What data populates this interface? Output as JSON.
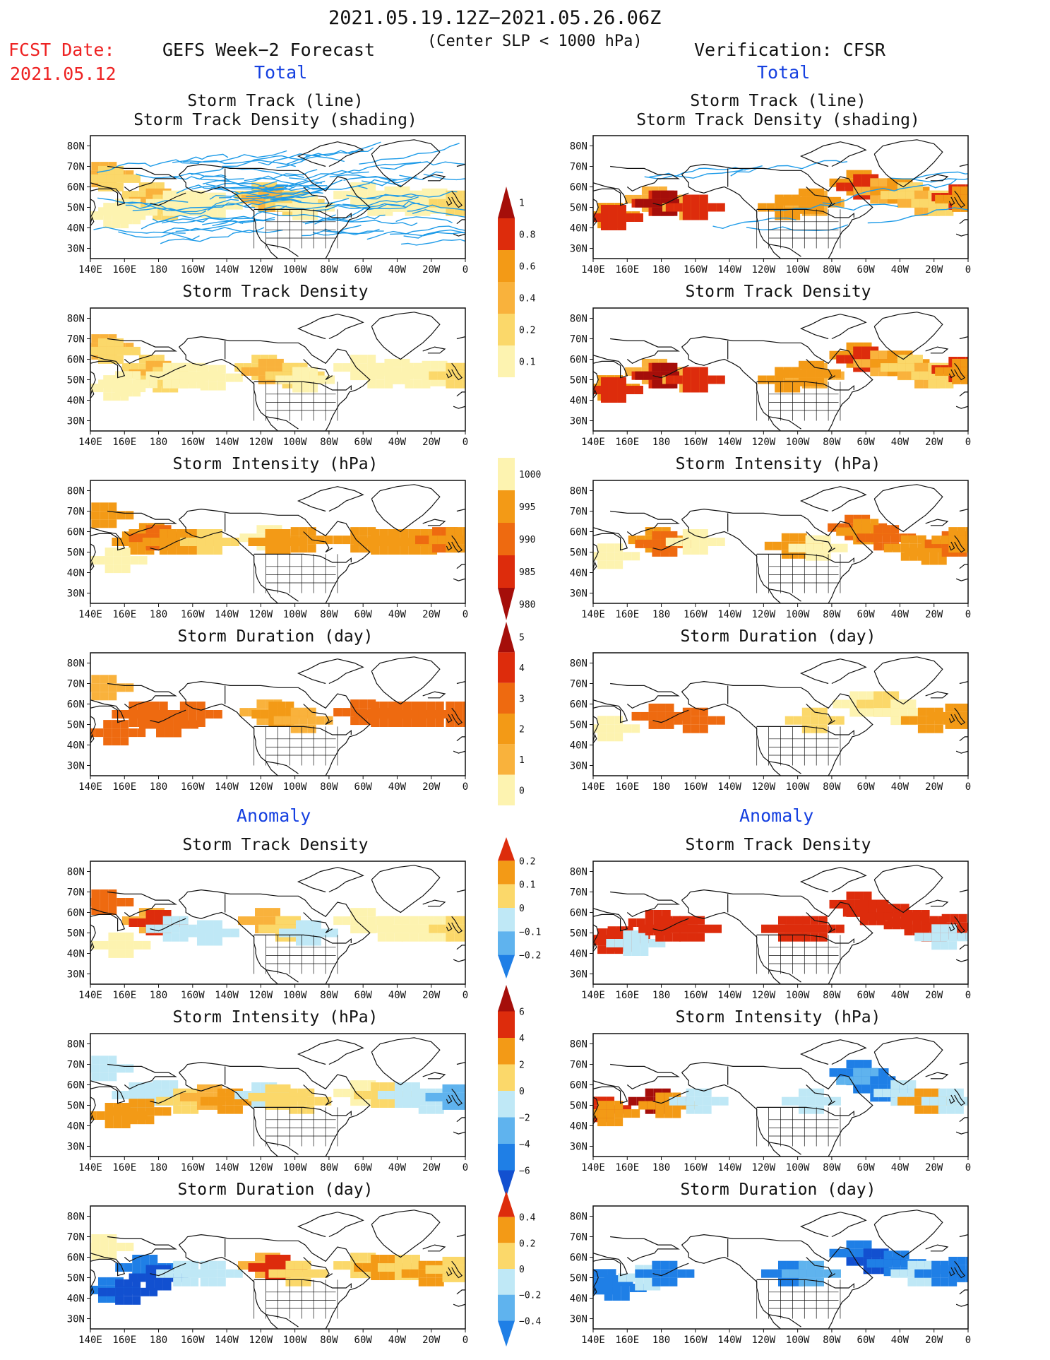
{
  "header": {
    "date_range": "2021.05.19.12Z−2021.05.26.06Z",
    "slp_note": "(Center SLP < 1000 hPa)",
    "fcst_label": "FCST Date:",
    "fcst_date": "2021.05.12",
    "left_title": "GEFS Week−2 Forecast",
    "right_title": "Verification: CFSR",
    "total_left": "Total",
    "total_right": "Total",
    "anomaly_left": "Anomaly",
    "anomaly_right": "Anomaly"
  },
  "panel_titles": {
    "track_line": "Storm Track (line)",
    "track_shading": "Storm Track Density (shading)",
    "density": "Storm Track Density",
    "intensity": "Storm Intensity (hPa)",
    "duration": "Storm Duration (day)"
  },
  "axis": {
    "lon_ticks": [
      "140E",
      "160E",
      "180",
      "160W",
      "140W",
      "120W",
      "100W",
      "80W",
      "60W",
      "40W",
      "20W",
      "0"
    ],
    "lat_ticks": [
      "80N",
      "70N",
      "60N",
      "50N",
      "40N",
      "30N"
    ]
  },
  "colorbars": {
    "density_total": [
      "1",
      "0.8",
      "0.6",
      "0.4",
      "0.2",
      "0.1"
    ],
    "intensity_total": [
      "1000",
      "995",
      "990",
      "985",
      "980"
    ],
    "duration_total": [
      "5",
      "4",
      "3",
      "2",
      "1",
      "0"
    ],
    "density_anom": [
      "0.2",
      "0.1",
      "0",
      "−0.1",
      "−0.2"
    ],
    "intensity_anom": [
      "6",
      "4",
      "2",
      "0",
      "−2",
      "−4",
      "−6"
    ],
    "duration_anom": [
      "0.4",
      "0.2",
      "0",
      "−0.2",
      "−0.4"
    ]
  },
  "colors": {
    "track_line": "#1e9be8",
    "pale_yellow": "#fdf3b0",
    "yellow": "#fbd86a",
    "light_orange": "#f9b23c",
    "orange": "#f39a16",
    "dark_orange": "#ee6a10",
    "red": "#dd2c0c",
    "dark_red": "#a50e0a",
    "light_blue": "#bfe8f6",
    "mid_blue": "#5fb3ee",
    "blue": "#1f7fe6",
    "dark_blue": "#1250d0"
  },
  "chart_data": [
    {
      "type": "heatmap",
      "panel": "GEFS Storm Track (line) / Storm Track Density (shading)",
      "lon_range": [
        140,
        360
      ],
      "lat_range": [
        25,
        85
      ],
      "cells": [
        [
          180,
          52,
          0.3
        ],
        [
          190,
          55,
          0.25
        ],
        [
          245,
          52,
          0.2
        ],
        [
          262,
          55,
          0.2
        ],
        [
          305,
          52,
          0.3
        ],
        [
          325,
          55,
          0.3
        ],
        [
          345,
          55,
          0.3
        ]
      ]
    },
    {
      "type": "heatmap",
      "panel": "CFSR Storm Track (line) / Storm Track Density (shading)",
      "lon_range": [
        140,
        360
      ],
      "lat_range": [
        25,
        85
      ],
      "cells": [
        [
          152,
          45,
          0.8
        ],
        [
          180,
          52,
          1.0
        ],
        [
          200,
          50,
          0.9
        ],
        [
          255,
          50,
          0.6
        ],
        [
          270,
          52,
          0.6
        ],
        [
          300,
          60,
          1.0
        ],
        [
          320,
          58,
          0.8
        ],
        [
          345,
          50,
          0.7
        ],
        [
          357,
          55,
          0.9
        ]
      ]
    },
    {
      "type": "heatmap",
      "panel": "GEFS Storm Track Density",
      "lon_range": [
        140,
        360
      ],
      "lat_range": [
        25,
        85
      ],
      "cells": [
        [
          150,
          65,
          0.4
        ],
        [
          180,
          52,
          0.5
        ],
        [
          245,
          55,
          0.4
        ],
        [
          265,
          50,
          0.3
        ],
        [
          305,
          52,
          0.2
        ],
        [
          325,
          52,
          0.2
        ],
        [
          345,
          52,
          0.2
        ],
        [
          358,
          50,
          0.3
        ]
      ]
    },
    {
      "type": "heatmap",
      "panel": "CFSR Storm Track Density",
      "lon_range": [
        140,
        360
      ],
      "lat_range": [
        25,
        85
      ],
      "cells": [
        [
          152,
          45,
          0.7
        ],
        [
          180,
          52,
          1.0
        ],
        [
          200,
          50,
          0.8
        ],
        [
          255,
          50,
          0.5
        ],
        [
          270,
          52,
          0.6
        ],
        [
          300,
          60,
          0.9
        ],
        [
          320,
          58,
          0.7
        ],
        [
          345,
          52,
          0.6
        ],
        [
          357,
          55,
          0.8
        ]
      ]
    },
    {
      "type": "heatmap",
      "panel": "GEFS Storm Intensity (hPa)",
      "lon_range": [
        140,
        360
      ],
      "lat_range": [
        25,
        85
      ],
      "cells": [
        [
          180,
          55,
          990
        ],
        [
          190,
          55,
          985
        ],
        [
          300,
          55,
          992
        ],
        [
          330,
          55,
          993
        ]
      ]
    },
    {
      "type": "heatmap",
      "panel": "CFSR Storm Intensity (hPa)",
      "lon_range": [
        140,
        360
      ],
      "lat_range": [
        25,
        85
      ],
      "cells": [
        [
          180,
          55,
          990
        ],
        [
          295,
          62,
          988
        ],
        [
          320,
          55,
          990
        ]
      ]
    },
    {
      "type": "heatmap",
      "panel": "GEFS Storm Duration (day)",
      "lon_range": [
        140,
        360
      ],
      "lat_range": [
        25,
        85
      ],
      "cells": [
        [
          180,
          52,
          3.5
        ],
        [
          245,
          55,
          3
        ],
        [
          305,
          55,
          4
        ],
        [
          330,
          55,
          4
        ]
      ]
    },
    {
      "type": "heatmap",
      "panel": "CFSR Storm Duration (day)",
      "lon_range": [
        140,
        360
      ],
      "lat_range": [
        25,
        85
      ],
      "cells": [
        [
          180,
          55,
          3
        ],
        [
          300,
          60,
          1.5
        ],
        [
          330,
          55,
          2
        ]
      ]
    },
    {
      "type": "heatmap",
      "panel": "GEFS Storm Track Density Anomaly",
      "lon_range": [
        140,
        360
      ],
      "lat_range": [
        25,
        85
      ],
      "cells": [
        [
          150,
          65,
          0.15
        ],
        [
          180,
          52,
          0.12
        ],
        [
          200,
          48,
          -0.03
        ],
        [
          245,
          55,
          0.1
        ],
        [
          305,
          52,
          0.05
        ],
        [
          335,
          52,
          0.05
        ]
      ]
    },
    {
      "type": "heatmap",
      "panel": "CFSR Storm Track Density Anomaly",
      "lon_range": [
        140,
        360
      ],
      "lat_range": [
        25,
        85
      ],
      "cells": [
        [
          152,
          45,
          0.2
        ],
        [
          180,
          52,
          0.2
        ],
        [
          200,
          50,
          0.2
        ],
        [
          270,
          52,
          0.2
        ],
        [
          300,
          60,
          0.2
        ],
        [
          340,
          52,
          0.2
        ]
      ]
    },
    {
      "type": "heatmap",
      "panel": "GEFS Storm Intensity Anomaly (hPa)",
      "lon_range": [
        140,
        360
      ],
      "lat_range": [
        25,
        85
      ],
      "cells": [
        [
          180,
          55,
          -1
        ],
        [
          210,
          50,
          3
        ],
        [
          260,
          55,
          -1
        ],
        [
          320,
          52,
          -2
        ],
        [
          340,
          50,
          -3
        ]
      ]
    },
    {
      "type": "heatmap",
      "panel": "CFSR Storm Intensity Anomaly (hPa)",
      "lon_range": [
        140,
        360
      ],
      "lat_range": [
        25,
        85
      ],
      "cells": [
        [
          145,
          48,
          5
        ],
        [
          175,
          50,
          3
        ],
        [
          295,
          60,
          -4
        ],
        [
          320,
          50,
          -3
        ]
      ]
    },
    {
      "type": "heatmap",
      "panel": "GEFS Storm Duration Anomaly (day)",
      "lon_range": [
        140,
        360
      ],
      "lat_range": [
        25,
        85
      ],
      "cells": [
        [
          180,
          52,
          -0.3
        ],
        [
          205,
          50,
          -0.1
        ],
        [
          250,
          55,
          0.3
        ],
        [
          310,
          55,
          0.1
        ],
        [
          340,
          55,
          0.1
        ]
      ]
    },
    {
      "type": "heatmap",
      "panel": "CFSR Storm Duration Anomaly (day)",
      "lon_range": [
        140,
        360
      ],
      "lat_range": [
        25,
        85
      ],
      "cells": [
        [
          150,
          45,
          -0.3
        ],
        [
          180,
          52,
          -0.2
        ],
        [
          300,
          60,
          -0.4
        ],
        [
          340,
          52,
          -0.3
        ]
      ]
    }
  ]
}
